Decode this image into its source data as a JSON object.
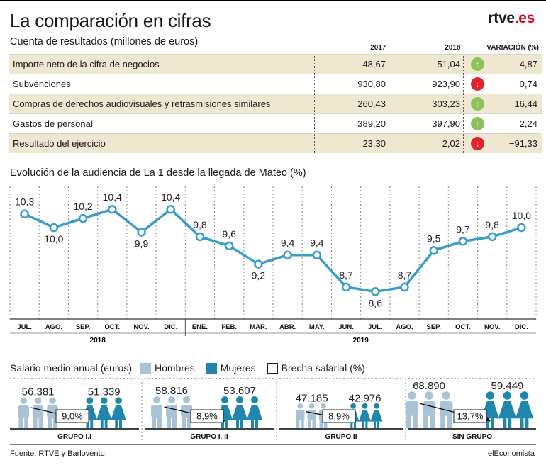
{
  "header": {
    "title": "La comparación en cifras",
    "brand": "rtve",
    "brand_suffix": ".es"
  },
  "results_table": {
    "subtitle": "Cuenta de resultados (millones de euros)",
    "col_2017": "2017",
    "col_2018": "2018",
    "col_var": "VARIACIÓN (%)",
    "rows": [
      {
        "label": "Importe neto de la cifra de negocios",
        "v2017": "48,67",
        "v2018": "51,04",
        "dir": "up",
        "var": "4,87"
      },
      {
        "label": "Subvenciones",
        "v2017": "930,80",
        "v2018": "923,90",
        "dir": "down",
        "var": "−0,74"
      },
      {
        "label": "Compras de derechos audiovisuales y retrasmisiones similares",
        "v2017": "260,43",
        "v2018": "303,23",
        "dir": "up",
        "var": "16,44"
      },
      {
        "label": "Gastos de personal",
        "v2017": "389,20",
        "v2018": "397,90",
        "dir": "up",
        "var": "2,24"
      },
      {
        "label": "Resultado del ejercicio",
        "v2017": "23,30",
        "v2018": "2,02",
        "dir": "down",
        "var": "−91,33"
      }
    ],
    "colors": {
      "shade": "#ede8cf",
      "up": "#8ec158",
      "down": "#e3232b"
    }
  },
  "chart_data": {
    "type": "line",
    "title": "Evolución de la audiencia de La 1 desde la llegada de Mateo (%)",
    "categories": [
      "JUL.",
      "AGO.",
      "SEP.",
      "OCT.",
      "NOV.",
      "DIC.",
      "ENE.",
      "FEB.",
      "MAR.",
      "ABR.",
      "MAY.",
      "JUN.",
      "JUL.",
      "AGO.",
      "SEP.",
      "OCT.",
      "NOV.",
      "DIC."
    ],
    "values": [
      10.3,
      10.0,
      10.2,
      10.4,
      9.9,
      10.4,
      9.8,
      9.6,
      9.2,
      9.4,
      9.4,
      8.7,
      8.6,
      8.7,
      9.5,
      9.7,
      9.8,
      10.0
    ],
    "labels": [
      "10,3",
      "10,0",
      "10,2",
      "10,4",
      "9,9",
      "10,4",
      "9,8",
      "9,6",
      "9,2",
      "9,4",
      "9,4",
      "8,7",
      "8,6",
      "8,7",
      "9,5",
      "9,7",
      "9,8",
      "10,0"
    ],
    "years": [
      {
        "label": "2018"
      },
      {
        "label": "2019"
      }
    ],
    "ylim": [
      8.0,
      10.9
    ],
    "grid": "vertical-dashed",
    "color": "#3a9cc9"
  },
  "salary": {
    "title": "Salario medio anual (euros)",
    "legend": [
      {
        "label": "Hombres",
        "color": "#a9c3d6"
      },
      {
        "label": "Mujeres",
        "color": "#1f87ad"
      },
      {
        "label": "Brecha salarial (%)",
        "color": "#ffffff"
      }
    ],
    "groups": [
      {
        "name": "GRUPO I.I",
        "men": "56.381",
        "women": "51.339",
        "gap": "9,0%"
      },
      {
        "name": "GRUPO I. II",
        "men": "58.816",
        "women": "53.607",
        "gap": "8,9%"
      },
      {
        "name": "GRUPO II",
        "men": "47.185",
        "women": "42.976",
        "gap": "8,9%"
      },
      {
        "name": "SIN GRUPO",
        "men": "68.890",
        "women": "59.449",
        "gap": "13,7%"
      }
    ]
  },
  "footer": {
    "source": "Fuente: RTVE y Barlovento.",
    "credit": "elEconomista"
  }
}
